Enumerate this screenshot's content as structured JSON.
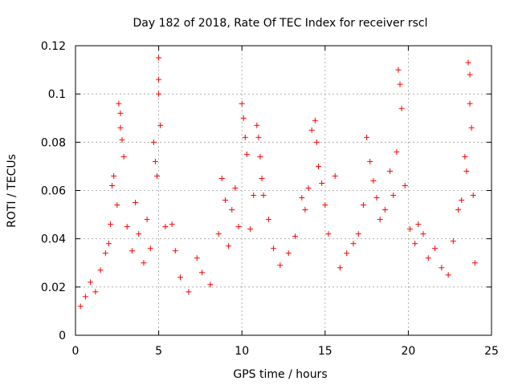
{
  "chart_data": {
    "type": "scatter",
    "title": "Day 182 of 2018, Rate Of TEC Index for receiver rscl",
    "xlabel": "GPS time / hours",
    "ylabel": "ROTI / TECUs",
    "xlim": [
      0,
      25
    ],
    "ylim": [
      0,
      0.12
    ],
    "x_ticks": [
      0,
      5,
      10,
      15,
      20,
      25
    ],
    "x_tick_labels": [
      "0",
      "5",
      "10",
      "15",
      "20",
      "25"
    ],
    "y_ticks": [
      0,
      0.02,
      0.04,
      0.06,
      0.08,
      0.1,
      0.12
    ],
    "y_tick_labels": [
      "0",
      "0.02",
      "0.04",
      "0.06",
      "0.08",
      "0.1",
      "0.12"
    ],
    "grid": true,
    "marker": "+",
    "marker_color": "#ff0000",
    "series": [
      {
        "name": "ROTI",
        "points": [
          [
            0.3,
            0.012
          ],
          [
            0.6,
            0.016
          ],
          [
            0.9,
            0.022
          ],
          [
            1.2,
            0.018
          ],
          [
            1.5,
            0.027
          ],
          [
            1.8,
            0.034
          ],
          [
            2.0,
            0.038
          ],
          [
            2.1,
            0.046
          ],
          [
            2.2,
            0.062
          ],
          [
            2.3,
            0.066
          ],
          [
            2.5,
            0.054
          ],
          [
            2.6,
            0.096
          ],
          [
            2.7,
            0.092
          ],
          [
            2.7,
            0.086
          ],
          [
            2.8,
            0.081
          ],
          [
            2.9,
            0.074
          ],
          [
            3.1,
            0.045
          ],
          [
            3.4,
            0.035
          ],
          [
            3.6,
            0.055
          ],
          [
            3.8,
            0.042
          ],
          [
            4.1,
            0.03
          ],
          [
            4.3,
            0.048
          ],
          [
            4.5,
            0.036
          ],
          [
            4.7,
            0.08
          ],
          [
            4.8,
            0.072
          ],
          [
            4.9,
            0.066
          ],
          [
            5.0,
            0.115
          ],
          [
            5.0,
            0.106
          ],
          [
            5.0,
            0.1
          ],
          [
            5.1,
            0.087
          ],
          [
            5.4,
            0.045
          ],
          [
            5.8,
            0.046
          ],
          [
            6.0,
            0.035
          ],
          [
            6.3,
            0.024
          ],
          [
            6.8,
            0.018
          ],
          [
            7.3,
            0.032
          ],
          [
            7.6,
            0.026
          ],
          [
            8.1,
            0.021
          ],
          [
            8.6,
            0.042
          ],
          [
            8.8,
            0.065
          ],
          [
            9.0,
            0.056
          ],
          [
            9.2,
            0.037
          ],
          [
            9.4,
            0.052
          ],
          [
            9.6,
            0.061
          ],
          [
            9.8,
            0.045
          ],
          [
            10.0,
            0.096
          ],
          [
            10.1,
            0.09
          ],
          [
            10.2,
            0.082
          ],
          [
            10.3,
            0.075
          ],
          [
            10.5,
            0.044
          ],
          [
            10.7,
            0.058
          ],
          [
            10.9,
            0.087
          ],
          [
            11.0,
            0.082
          ],
          [
            11.1,
            0.074
          ],
          [
            11.2,
            0.065
          ],
          [
            11.3,
            0.058
          ],
          [
            11.6,
            0.048
          ],
          [
            11.9,
            0.036
          ],
          [
            12.3,
            0.029
          ],
          [
            12.8,
            0.034
          ],
          [
            13.2,
            0.041
          ],
          [
            13.6,
            0.057
          ],
          [
            13.8,
            0.052
          ],
          [
            14.0,
            0.061
          ],
          [
            14.2,
            0.085
          ],
          [
            14.4,
            0.089
          ],
          [
            14.5,
            0.08
          ],
          [
            14.6,
            0.07
          ],
          [
            14.8,
            0.063
          ],
          [
            15.0,
            0.054
          ],
          [
            15.2,
            0.042
          ],
          [
            15.6,
            0.066
          ],
          [
            15.9,
            0.028
          ],
          [
            16.3,
            0.034
          ],
          [
            16.7,
            0.038
          ],
          [
            17.0,
            0.042
          ],
          [
            17.3,
            0.054
          ],
          [
            17.5,
            0.082
          ],
          [
            17.7,
            0.072
          ],
          [
            17.9,
            0.064
          ],
          [
            18.1,
            0.057
          ],
          [
            18.3,
            0.048
          ],
          [
            18.6,
            0.052
          ],
          [
            18.9,
            0.068
          ],
          [
            19.1,
            0.058
          ],
          [
            19.3,
            0.076
          ],
          [
            19.4,
            0.11
          ],
          [
            19.5,
            0.104
          ],
          [
            19.6,
            0.094
          ],
          [
            19.8,
            0.062
          ],
          [
            20.1,
            0.044
          ],
          [
            20.4,
            0.038
          ],
          [
            20.6,
            0.046
          ],
          [
            20.9,
            0.042
          ],
          [
            21.2,
            0.032
          ],
          [
            21.6,
            0.036
          ],
          [
            22.0,
            0.028
          ],
          [
            22.4,
            0.025
          ],
          [
            22.7,
            0.039
          ],
          [
            23.0,
            0.052
          ],
          [
            23.2,
            0.056
          ],
          [
            23.4,
            0.074
          ],
          [
            23.5,
            0.068
          ],
          [
            23.6,
            0.113
          ],
          [
            23.7,
            0.108
          ],
          [
            23.7,
            0.096
          ],
          [
            23.8,
            0.086
          ],
          [
            23.9,
            0.058
          ],
          [
            24.0,
            0.03
          ]
        ]
      }
    ]
  }
}
